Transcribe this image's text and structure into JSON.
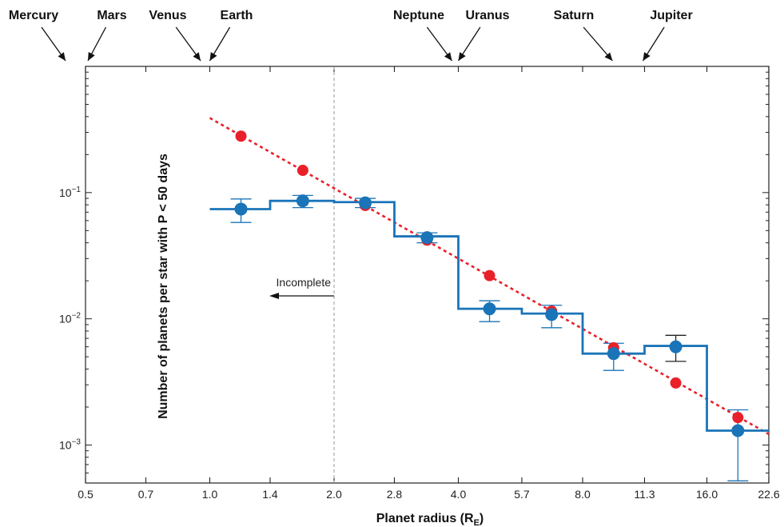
{
  "chart_data": {
    "type": "scatter",
    "title": "",
    "xlabel": "Planet radius (R",
    "xlabel_sub": "E",
    "xlabel_close": ")",
    "ylabel": "Number of planets per star with P < 50 days",
    "x_scale": "log",
    "y_scale": "log",
    "xlim": [
      0.5,
      22.6
    ],
    "ylim": [
      0.0005,
      1
    ],
    "x_ticks": [
      0.5,
      0.7,
      1.0,
      1.4,
      2.0,
      2.8,
      4.0,
      5.7,
      8.0,
      11.3,
      16.0,
      22.6
    ],
    "x_tick_labels": [
      "0.5",
      "0.7",
      "1.0",
      "1.4",
      "2.0",
      "2.8",
      "4.0",
      "5.7",
      "8.0",
      "11.3",
      "16.0",
      "22.6"
    ],
    "y_major_ticks": [
      0.1,
      0.01,
      0.001
    ],
    "y_tick_labels": [
      {
        "base": "10",
        "exp": "−1"
      },
      {
        "base": "10",
        "exp": "−2"
      },
      {
        "base": "10",
        "exp": "−3"
      }
    ],
    "grid": false,
    "planet_markers": [
      {
        "name": "Mercury",
        "radius": 0.38
      },
      {
        "name": "Mars",
        "radius": 0.53
      },
      {
        "name": "Venus",
        "radius": 0.95
      },
      {
        "name": "Earth",
        "radius": 1.0
      },
      {
        "name": "Neptune",
        "radius": 3.86
      },
      {
        "name": "Uranus",
        "radius": 4.0
      },
      {
        "name": "Saturn",
        "radius": 9.45
      },
      {
        "name": "Jupiter",
        "radius": 11.2
      }
    ],
    "incompleteness": {
      "x": 2.0,
      "label": "Incomplete"
    },
    "series": [
      {
        "kind": "histogram",
        "color": "#1a74b8",
        "bins": [
          {
            "x0": 1.0,
            "x1": 1.4,
            "y": 0.074
          },
          {
            "x0": 1.4,
            "x1": 2.0,
            "y": 0.086
          },
          {
            "x0": 2.0,
            "x1": 2.8,
            "y": 0.084
          },
          {
            "x0": 2.8,
            "x1": 4.0,
            "y": 0.045
          },
          {
            "x0": 4.0,
            "x1": 5.7,
            "y": 0.012
          },
          {
            "x0": 5.7,
            "x1": 8.0,
            "y": 0.011
          },
          {
            "x0": 8.0,
            "x1": 11.3,
            "y": 0.0053
          },
          {
            "x0": 11.3,
            "x1": 16.0,
            "y": 0.0061
          },
          {
            "x0": 16.0,
            "x1": 22.6,
            "y": 0.0013
          }
        ]
      },
      {
        "kind": "points",
        "color": "#1a74b8",
        "points": [
          {
            "x": 1.19,
            "y": 0.074,
            "lo": 0.058,
            "hi": 0.089
          },
          {
            "x": 1.68,
            "y": 0.086,
            "lo": 0.076,
            "hi": 0.095
          },
          {
            "x": 2.38,
            "y": 0.083,
            "lo": 0.076,
            "hi": 0.09
          },
          {
            "x": 3.36,
            "y": 0.044,
            "lo": 0.04,
            "hi": 0.048
          },
          {
            "x": 4.76,
            "y": 0.012,
            "lo": 0.0095,
            "hi": 0.0139
          },
          {
            "x": 6.73,
            "y": 0.0108,
            "lo": 0.0085,
            "hi": 0.0128
          },
          {
            "x": 9.51,
            "y": 0.0053,
            "lo": 0.0039,
            "hi": 0.0064
          },
          {
            "x": 13.45,
            "y": 0.006,
            "lo": 0.0046,
            "hi": 0.0074,
            "bar_color": "#222222"
          },
          {
            "x": 19.02,
            "y": 0.0013,
            "lo": 0.00052,
            "hi": 0.0019
          }
        ]
      },
      {
        "kind": "points",
        "color": "#e8202a",
        "points": [
          {
            "x": 1.19,
            "y": 0.28
          },
          {
            "x": 1.68,
            "y": 0.15
          },
          {
            "x": 2.38,
            "y": 0.079
          },
          {
            "x": 3.36,
            "y": 0.042
          },
          {
            "x": 4.76,
            "y": 0.022
          },
          {
            "x": 6.73,
            "y": 0.0115
          },
          {
            "x": 9.51,
            "y": 0.0059
          },
          {
            "x": 13.45,
            "y": 0.0031
          },
          {
            "x": 19.02,
            "y": 0.00165
          }
        ]
      },
      {
        "kind": "fit",
        "color": "#e8202a",
        "style": "dotted",
        "points": [
          {
            "x": 1.0,
            "y": 0.39
          },
          {
            "x": 22.6,
            "y": 0.00122
          }
        ]
      }
    ]
  }
}
